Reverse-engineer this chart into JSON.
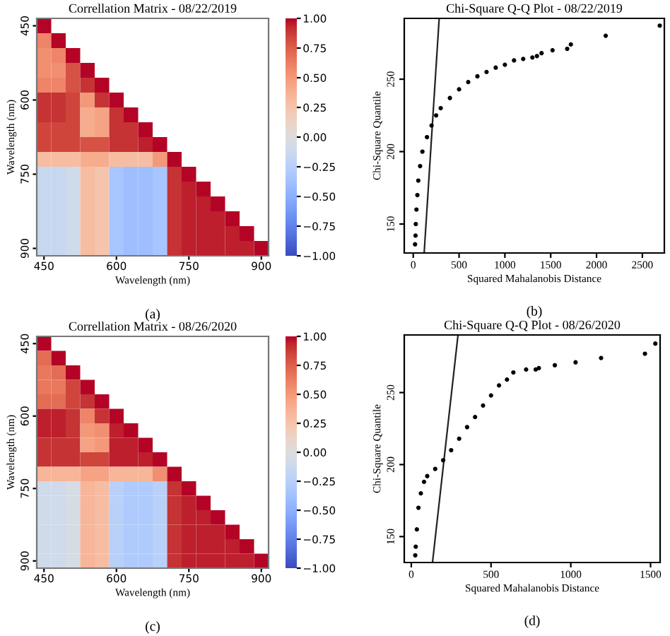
{
  "chart_data": [
    {
      "type": "heatmap",
      "title": "Correllation Matrix - 08/22/2019",
      "xlabel": "Wavelength (nm)",
      "ylabel": "Wavelength (nm)",
      "annotations": [
        "(a)"
      ],
      "categories": [
        "450",
        null,
        null,
        null,
        null,
        "600",
        null,
        null,
        null,
        null,
        "750",
        null,
        null,
        null,
        null,
        "900"
      ],
      "y_categories": [
        "450",
        null,
        null,
        null,
        null,
        "600",
        null,
        null,
        null,
        null,
        "750",
        null,
        null,
        null,
        null,
        "900"
      ],
      "clim": [
        -1,
        1
      ],
      "cticks": [
        {
          "value": -1,
          "label": "−1.00"
        },
        {
          "value": -0.75,
          "label": "−0.75"
        },
        {
          "value": -0.5,
          "label": "−0.50"
        },
        {
          "value": -0.25,
          "label": "−0.25"
        },
        {
          "value": 0,
          "label": "0.00"
        },
        {
          "value": 0.25,
          "label": "0.25"
        },
        {
          "value": 0.5,
          "label": "0.50"
        },
        {
          "value": 0.75,
          "label": "0.75"
        },
        {
          "value": 1,
          "label": "1.00"
        }
      ],
      "cells": [
        [
          1.0,
          null,
          null,
          null,
          null,
          null,
          null,
          null,
          null,
          null,
          null,
          null,
          null,
          null,
          null,
          null
        ],
        [
          0.6,
          1.0,
          null,
          null,
          null,
          null,
          null,
          null,
          null,
          null,
          null,
          null,
          null,
          null,
          null,
          null
        ],
        [
          0.55,
          0.6,
          1.0,
          null,
          null,
          null,
          null,
          null,
          null,
          null,
          null,
          null,
          null,
          null,
          null,
          null
        ],
        [
          0.55,
          0.55,
          0.8,
          1.0,
          null,
          null,
          null,
          null,
          null,
          null,
          null,
          null,
          null,
          null,
          null,
          null
        ],
        [
          0.6,
          0.6,
          0.8,
          0.9,
          1.0,
          null,
          null,
          null,
          null,
          null,
          null,
          null,
          null,
          null,
          null,
          null
        ],
        [
          0.9,
          0.9,
          0.85,
          0.5,
          0.9,
          1.0,
          null,
          null,
          null,
          null,
          null,
          null,
          null,
          null,
          null,
          null
        ],
        [
          0.9,
          0.9,
          0.85,
          0.4,
          0.45,
          0.9,
          1.0,
          null,
          null,
          null,
          null,
          null,
          null,
          null,
          null,
          null
        ],
        [
          0.85,
          0.85,
          0.85,
          0.4,
          0.45,
          0.9,
          0.9,
          1.0,
          null,
          null,
          null,
          null,
          null,
          null,
          null,
          null
        ],
        [
          0.85,
          0.85,
          0.85,
          0.8,
          0.8,
          0.9,
          0.9,
          0.95,
          1.0,
          null,
          null,
          null,
          null,
          null,
          null,
          null
        ],
        [
          0.3,
          0.3,
          0.3,
          0.4,
          0.4,
          0.3,
          0.3,
          0.3,
          0.5,
          1.0,
          null,
          null,
          null,
          null,
          null,
          null
        ],
        [
          -0.15,
          -0.15,
          -0.1,
          0.3,
          0.25,
          -0.35,
          -0.4,
          -0.4,
          -0.35,
          0.9,
          1.0,
          null,
          null,
          null,
          null,
          null
        ],
        [
          -0.15,
          -0.15,
          -0.1,
          0.3,
          0.25,
          -0.35,
          -0.4,
          -0.4,
          -0.35,
          0.9,
          0.95,
          1.0,
          null,
          null,
          null,
          null
        ],
        [
          -0.15,
          -0.15,
          -0.1,
          0.3,
          0.25,
          -0.35,
          -0.4,
          -0.4,
          -0.35,
          0.9,
          0.95,
          0.95,
          1.0,
          null,
          null,
          null
        ],
        [
          -0.15,
          -0.15,
          -0.1,
          0.3,
          0.25,
          -0.35,
          -0.4,
          -0.4,
          -0.35,
          0.9,
          0.95,
          0.95,
          0.95,
          1.0,
          null,
          null
        ],
        [
          -0.15,
          -0.15,
          -0.1,
          0.3,
          0.25,
          -0.35,
          -0.4,
          -0.4,
          -0.35,
          0.9,
          0.95,
          0.95,
          0.95,
          0.95,
          1.0,
          null
        ],
        [
          -0.15,
          -0.15,
          -0.1,
          0.3,
          0.25,
          -0.35,
          -0.4,
          -0.4,
          -0.35,
          0.9,
          0.95,
          0.95,
          0.95,
          0.95,
          0.95,
          1.0
        ]
      ]
    },
    {
      "type": "scatter",
      "title": "Chi-Square Q-Q Plot - 08/22/2019",
      "xlabel": "Squared Mahalanobis Distance",
      "ylabel": "Chi-Square Quantile",
      "annotations": [
        "(b)"
      ],
      "xlim": [
        -98,
        2740
      ],
      "xticks": [
        0,
        500,
        1000,
        1500,
        2000,
        2500
      ],
      "ylim": [
        130,
        292
      ],
      "yticks": [
        150,
        200,
        250
      ],
      "grid": false,
      "legend": false,
      "series": [
        {
          "type": "scatter",
          "marker": "circle",
          "color": "#000000",
          "x": [
            20,
            25,
            28,
            35,
            45,
            55,
            75,
            100,
            150,
            200,
            250,
            300,
            400,
            500,
            600,
            700,
            800,
            900,
            1000,
            1100,
            1200,
            1300,
            1350,
            1400,
            1520,
            1680,
            1720,
            2100,
            2690
          ],
          "values": [
            136,
            142,
            150,
            160,
            170,
            180,
            190,
            200,
            210,
            218,
            225,
            230,
            237,
            243,
            248,
            252,
            255,
            258,
            260,
            263,
            264,
            265,
            266,
            268,
            270,
            271,
            274,
            280,
            287
          ]
        },
        {
          "type": "line",
          "color": "#222222",
          "x": [
            119,
            283
          ],
          "values": [
            130,
            292
          ]
        }
      ]
    },
    {
      "type": "heatmap",
      "title": "Correllation Matrix - 08/26/2020",
      "xlabel": "Wavelength (nm)",
      "ylabel": "Wavelength (nm)",
      "annotations": [
        "(c)"
      ],
      "categories": [
        "450",
        null,
        null,
        null,
        null,
        "600",
        null,
        null,
        null,
        null,
        "750",
        null,
        null,
        null,
        null,
        "900"
      ],
      "y_categories": [
        "450",
        null,
        null,
        null,
        null,
        "600",
        null,
        null,
        null,
        null,
        "750",
        null,
        null,
        null,
        null,
        "900"
      ],
      "clim": [
        -1,
        1
      ],
      "cticks": [
        {
          "value": -1,
          "label": "−1.00"
        },
        {
          "value": -0.75,
          "label": "−0.75"
        },
        {
          "value": -0.5,
          "label": "−0.50"
        },
        {
          "value": -0.25,
          "label": "−0.25"
        },
        {
          "value": 0,
          "label": "0.00"
        },
        {
          "value": 0.25,
          "label": "0.25"
        },
        {
          "value": 0.5,
          "label": "0.50"
        },
        {
          "value": 0.75,
          "label": "0.75"
        },
        {
          "value": 1,
          "label": "1.00"
        }
      ],
      "cells": [
        [
          1.0,
          null,
          null,
          null,
          null,
          null,
          null,
          null,
          null,
          null,
          null,
          null,
          null,
          null,
          null,
          null
        ],
        [
          0.7,
          1.0,
          null,
          null,
          null,
          null,
          null,
          null,
          null,
          null,
          null,
          null,
          null,
          null,
          null,
          null
        ],
        [
          0.65,
          0.7,
          1.0,
          null,
          null,
          null,
          null,
          null,
          null,
          null,
          null,
          null,
          null,
          null,
          null,
          null
        ],
        [
          0.65,
          0.65,
          0.85,
          1.0,
          null,
          null,
          null,
          null,
          null,
          null,
          null,
          null,
          null,
          null,
          null,
          null
        ],
        [
          0.7,
          0.7,
          0.85,
          0.9,
          1.0,
          null,
          null,
          null,
          null,
          null,
          null,
          null,
          null,
          null,
          null,
          null
        ],
        [
          0.95,
          0.95,
          0.9,
          0.6,
          0.9,
          1.0,
          null,
          null,
          null,
          null,
          null,
          null,
          null,
          null,
          null,
          null
        ],
        [
          0.95,
          0.95,
          0.9,
          0.5,
          0.55,
          0.95,
          1.0,
          null,
          null,
          null,
          null,
          null,
          null,
          null,
          null,
          null
        ],
        [
          0.9,
          0.9,
          0.9,
          0.45,
          0.5,
          0.95,
          0.95,
          1.0,
          null,
          null,
          null,
          null,
          null,
          null,
          null,
          null
        ],
        [
          0.9,
          0.9,
          0.9,
          0.85,
          0.85,
          0.95,
          0.95,
          0.95,
          1.0,
          null,
          null,
          null,
          null,
          null,
          null,
          null
        ],
        [
          0.35,
          0.35,
          0.35,
          0.45,
          0.45,
          0.35,
          0.35,
          0.35,
          0.55,
          1.0,
          null,
          null,
          null,
          null,
          null,
          null
        ],
        [
          -0.1,
          -0.1,
          -0.05,
          0.35,
          0.3,
          -0.25,
          -0.3,
          -0.3,
          -0.25,
          0.9,
          1.0,
          null,
          null,
          null,
          null,
          null
        ],
        [
          -0.1,
          -0.1,
          -0.05,
          0.35,
          0.3,
          -0.25,
          -0.3,
          -0.3,
          -0.25,
          0.9,
          0.95,
          1.0,
          null,
          null,
          null,
          null
        ],
        [
          -0.1,
          -0.1,
          -0.05,
          0.35,
          0.3,
          -0.25,
          -0.3,
          -0.3,
          -0.25,
          0.9,
          0.95,
          0.95,
          1.0,
          null,
          null,
          null
        ],
        [
          -0.1,
          -0.1,
          -0.05,
          0.35,
          0.3,
          -0.25,
          -0.3,
          -0.3,
          -0.25,
          0.9,
          0.95,
          0.95,
          0.95,
          1.0,
          null,
          null
        ],
        [
          -0.1,
          -0.1,
          -0.05,
          0.35,
          0.3,
          -0.25,
          -0.3,
          -0.3,
          -0.25,
          0.9,
          0.95,
          0.95,
          0.95,
          0.95,
          1.0,
          null
        ],
        [
          -0.1,
          -0.1,
          -0.05,
          0.35,
          0.3,
          -0.25,
          -0.3,
          -0.3,
          -0.25,
          0.9,
          0.95,
          0.95,
          0.95,
          0.95,
          0.95,
          1.0
        ]
      ]
    },
    {
      "type": "scatter",
      "title": "Chi-Square Q-Q Plot - 08/26/2020",
      "xlabel": "Squared Mahalanobis Distance",
      "ylabel": "Chi-Square Quantile",
      "annotations": [
        "(d)"
      ],
      "xlim": [
        -44,
        1560
      ],
      "xticks": [
        0,
        500,
        1000,
        1500
      ],
      "ylim": [
        132,
        290
      ],
      "yticks": [
        150,
        200,
        250
      ],
      "grid": false,
      "legend": false,
      "series": [
        {
          "type": "scatter",
          "marker": "circle",
          "color": "#000000",
          "x": [
            25,
            28,
            35,
            45,
            60,
            80,
            100,
            150,
            200,
            250,
            300,
            350,
            400,
            450,
            500,
            550,
            600,
            640,
            720,
            780,
            800,
            900,
            1030,
            1190,
            1465,
            1530
          ],
          "values": [
            137,
            143,
            155,
            170,
            180,
            188,
            192,
            197,
            203,
            210,
            218,
            226,
            233,
            241,
            248,
            255,
            259,
            264,
            266,
            266,
            267,
            269,
            271,
            274,
            277,
            284
          ]
        },
        {
          "type": "line",
          "color": "#222222",
          "x": [
            133,
            293
          ],
          "values": [
            132,
            290
          ]
        }
      ]
    }
  ]
}
